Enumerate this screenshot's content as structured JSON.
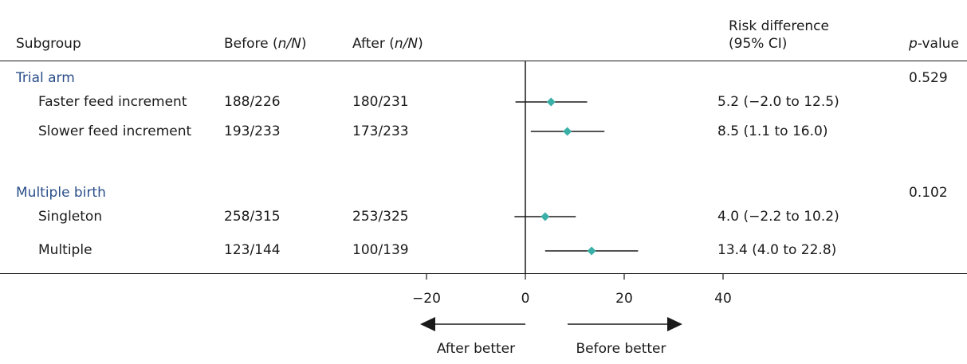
{
  "header": {
    "subgroup": "Subgroup",
    "before": "Before (",
    "after": "After (",
    "nN": "n/N",
    "close": ")",
    "rd_line1": "Risk difference",
    "rd_line2": "(95% CI)",
    "pvalue_p": "p",
    "pvalue_rest": "-value"
  },
  "groups": [
    {
      "label": "Trial arm",
      "pvalue": "0.529"
    },
    {
      "label": "Multiple birth",
      "pvalue": "0.102"
    }
  ],
  "rows": [
    {
      "label": "Faster feed increment",
      "before": "188/226",
      "after": "180/231",
      "ci_text": "5.2 (−2.0 to 12.5)"
    },
    {
      "label": "Slower feed increment",
      "before": "193/233",
      "after": "173/233",
      "ci_text": "8.5 (1.1 to 16.0)"
    },
    {
      "label": "Singleton",
      "before": "258/315",
      "after": "253/325",
      "ci_text": "4.0 (−2.2 to 10.2)"
    },
    {
      "label": "Multiple",
      "before": "123/144",
      "after": "100/139",
      "ci_text": "13.4 (4.0 to 22.8)"
    }
  ],
  "chart_data": {
    "type": "forest",
    "xticks": [
      -20,
      0,
      20,
      40
    ],
    "xtick_labels": [
      "−20",
      "0",
      "20",
      "40"
    ],
    "xlim": [
      -20,
      40
    ],
    "reference_line": 0,
    "marker_color": "#3bb0a8",
    "points": [
      {
        "label": "Faster feed increment",
        "estimate": 5.2,
        "lower": -2.0,
        "upper": 12.5
      },
      {
        "label": "Slower feed increment",
        "estimate": 8.5,
        "lower": 1.1,
        "upper": 16.0
      },
      {
        "label": "Singleton",
        "estimate": 4.0,
        "lower": -2.2,
        "upper": 10.2
      },
      {
        "label": "Multiple",
        "estimate": 13.4,
        "lower": 4.0,
        "upper": 22.8
      }
    ],
    "direction_left": "After better",
    "direction_right": "Before better"
  }
}
